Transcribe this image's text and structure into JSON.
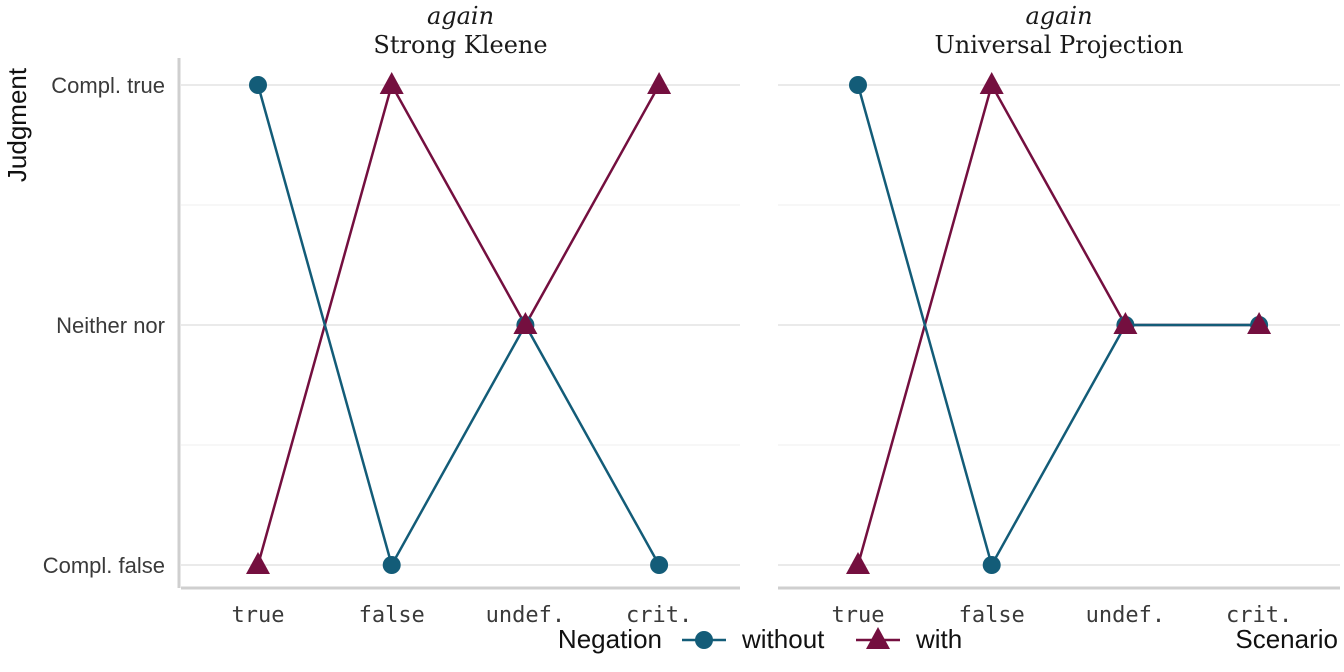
{
  "chart_data": {
    "type": "line",
    "facet_label": "again",
    "ylabel": "Judgment",
    "xlabel": "Scenario",
    "categories": [
      "true",
      "false",
      "undef.",
      "crit."
    ],
    "y_levels": [
      "Compl. false",
      "Neither nor",
      "Compl. true"
    ],
    "legend": {
      "title": "Negation",
      "position": "bottom",
      "entries": [
        {
          "name": "without",
          "shape": "circle"
        },
        {
          "name": "with",
          "shape": "triangle"
        }
      ]
    },
    "colors": {
      "without": "#135c78",
      "with": "#740f3f",
      "grid": "#e3e3e3",
      "axis": "#cfcfcf"
    },
    "grid": true,
    "panels": [
      {
        "title": "Strong Kleene",
        "series": [
          {
            "name": "without",
            "values": [
              "Compl. true",
              "Compl. false",
              "Neither nor",
              "Compl. false"
            ]
          },
          {
            "name": "with",
            "values": [
              "Compl. false",
              "Compl. true",
              "Neither nor",
              "Compl. true"
            ]
          }
        ]
      },
      {
        "title": "Universal Projection",
        "series": [
          {
            "name": "without",
            "values": [
              "Compl. true",
              "Compl. false",
              "Neither nor",
              "Neither nor"
            ]
          },
          {
            "name": "with",
            "values": [
              "Compl. false",
              "Compl. true",
              "Neither nor",
              "Neither nor"
            ]
          }
        ]
      }
    ]
  }
}
